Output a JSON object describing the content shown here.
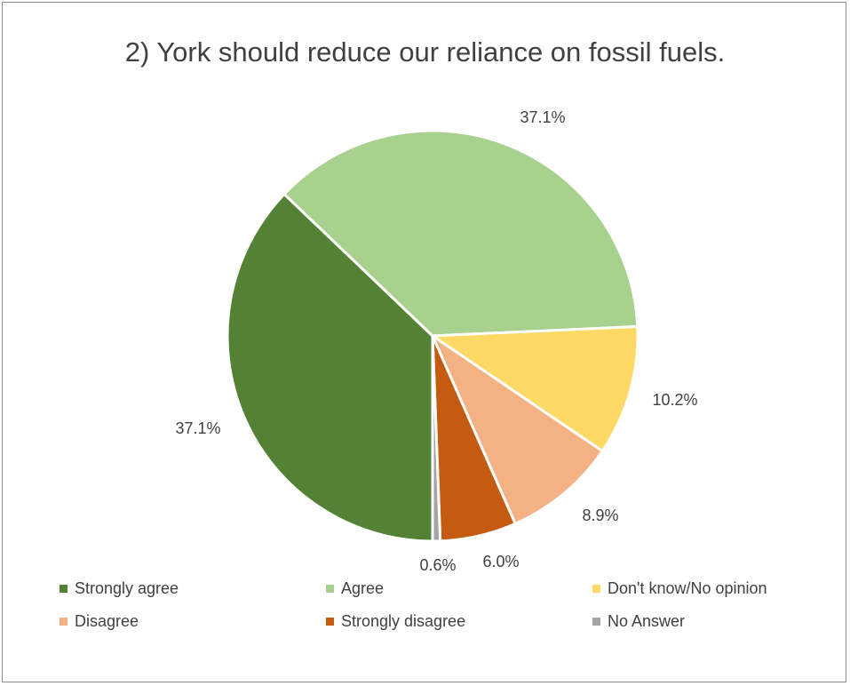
{
  "chart_data": {
    "type": "pie",
    "title": "2) York should reduce our reliance on fossil fuels.",
    "categories": [
      "Strongly agree",
      "Agree",
      "Don't know/No opinion",
      "Disagree",
      "Strongly disagree",
      "No Answer"
    ],
    "values": [
      37.1,
      37.1,
      10.2,
      8.9,
      6.0,
      0.6
    ],
    "data_labels": [
      "37.1%",
      "37.1%",
      "10.2%",
      "8.9%",
      "6.0%",
      "0.6%"
    ],
    "colors": [
      "#548235",
      "#a9d18e",
      "#ffd966",
      "#f4b183",
      "#c55a11",
      "#a5a5a5"
    ],
    "legend_position": "bottom",
    "start_angle": "bottom, clockwise"
  }
}
